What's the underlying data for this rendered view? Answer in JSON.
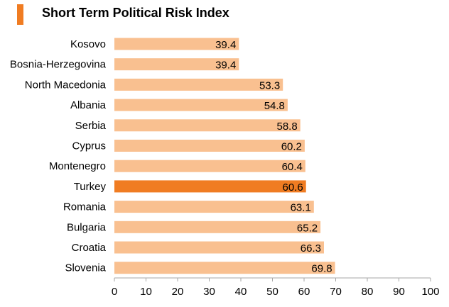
{
  "chart_data": {
    "type": "bar",
    "orientation": "horizontal",
    "title": "Short Term Political Risk Index",
    "categories": [
      "Kosovo",
      "Bosnia-Herzegovina",
      "North Macedonia",
      "Albania",
      "Serbia",
      "Cyprus",
      "Montenegro",
      "Turkey",
      "Romania",
      "Bulgaria",
      "Croatia",
      "Slovenia"
    ],
    "values": [
      39.4,
      39.4,
      53.3,
      54.8,
      58.8,
      60.2,
      60.4,
      60.6,
      63.1,
      65.2,
      66.3,
      69.8
    ],
    "value_labels": [
      "39.4",
      "39.4",
      "53.3",
      "54.8",
      "58.8",
      "60.2",
      "60.4",
      "60.6",
      "63.1",
      "65.2",
      "66.3",
      "69.8"
    ],
    "highlight": "Turkey",
    "xlim": [
      0,
      100
    ],
    "xticks": [
      "0",
      "10",
      "20",
      "30",
      "40",
      "50",
      "60",
      "70",
      "80",
      "90",
      "100"
    ],
    "xlabel": "",
    "ylabel": "",
    "grid": false,
    "colors": {
      "bar": "#f9c090",
      "highlight": "#f07c22",
      "title_marker": "#f07c22",
      "axis": "#a6a6a6"
    }
  }
}
